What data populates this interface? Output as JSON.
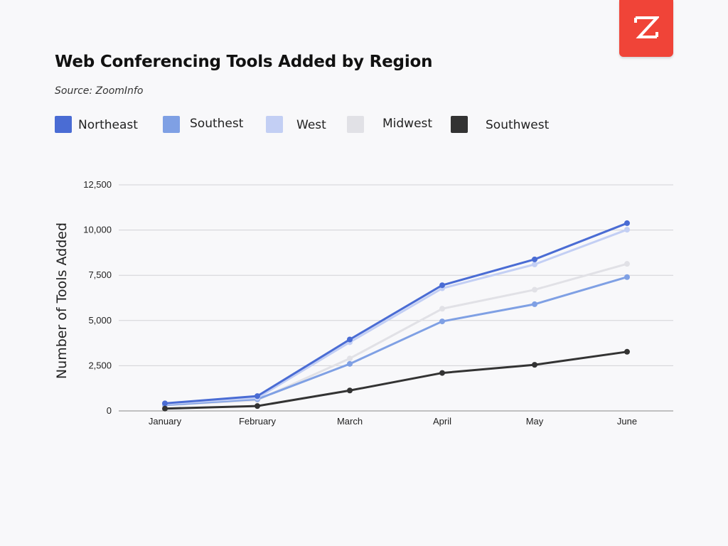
{
  "brand": {
    "logo_icon": "zoominfo-z-logo-icon",
    "logo_color": "#f04438"
  },
  "chart_data": {
    "type": "line",
    "title": "Web Conferencing Tools Added by Region",
    "subtitle": "Source: ZoomInfo",
    "xlabel": "",
    "ylabel": "Number of Tools Added",
    "categories": [
      "January",
      "February",
      "March",
      "April",
      "May",
      "June"
    ],
    "ylim": [
      0,
      12500
    ],
    "yticks": [
      0,
      2500,
      5000,
      7500,
      10000,
      12500
    ],
    "ytick_labels": [
      "0",
      "2,500",
      "5,000",
      "7,500",
      "10,000",
      "12,500"
    ],
    "grid": true,
    "legend_position": "top-left",
    "series": [
      {
        "name": "Northeast",
        "color": "#4a6cd4",
        "values": [
          420,
          820,
          3950,
          6950,
          8380,
          10380
        ]
      },
      {
        "name": "Southest",
        "color": "#7fa0e4",
        "values": [
          330,
          650,
          2600,
          4950,
          5900,
          7400
        ]
      },
      {
        "name": "West",
        "color": "#c3cff4",
        "values": [
          380,
          720,
          3800,
          6780,
          8100,
          10020
        ]
      },
      {
        "name": "Midwest",
        "color": "#e1e1e6",
        "values": [
          310,
          600,
          2900,
          5650,
          6700,
          8130
        ]
      },
      {
        "name": "Southwest",
        "color": "#333333",
        "values": [
          130,
          270,
          1130,
          2100,
          2550,
          3270
        ]
      }
    ]
  }
}
